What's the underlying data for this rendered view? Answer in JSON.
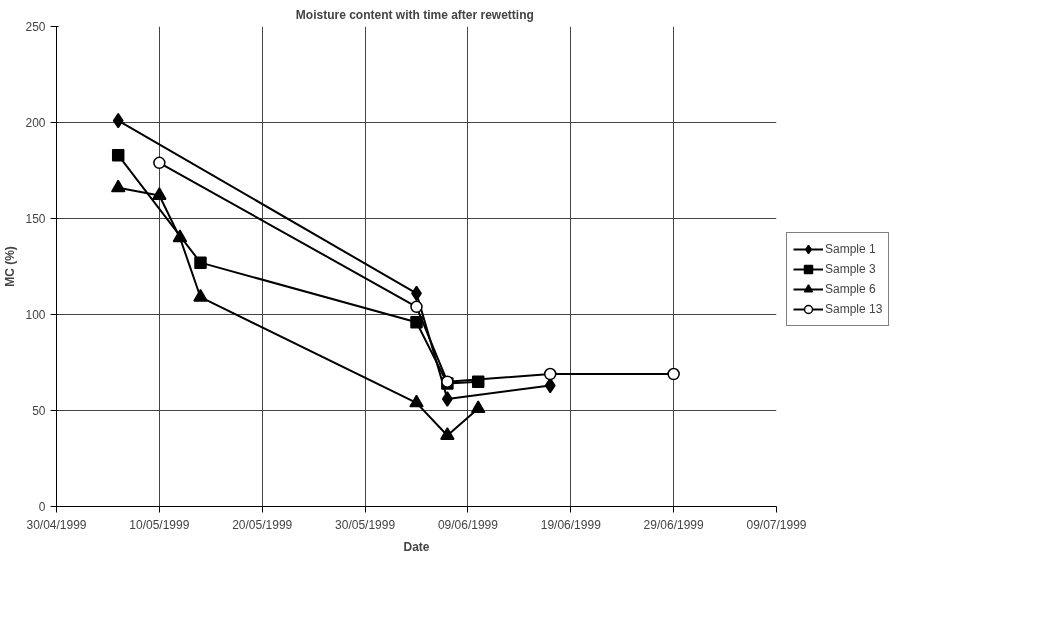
{
  "chart_data": {
    "type": "line",
    "title": "Moisture content  with time after rewetting",
    "xlabel": "Date",
    "ylabel": "MC (%)",
    "xlim": [
      "1999-04-30",
      "1999-07-09"
    ],
    "xticks": [
      {
        "value": "1999-04-30",
        "label": "30/04/1999"
      },
      {
        "value": "1999-05-10",
        "label": "10/05/1999"
      },
      {
        "value": "1999-05-20",
        "label": "20/05/1999"
      },
      {
        "value": "1999-05-30",
        "label": "30/05/1999"
      },
      {
        "value": "1999-06-09",
        "label": "09/06/1999"
      },
      {
        "value": "1999-06-19",
        "label": "19/06/1999"
      },
      {
        "value": "1999-06-29",
        "label": "29/06/1999"
      },
      {
        "value": "1999-07-09",
        "label": "09/07/1999"
      }
    ],
    "ylim": [
      0,
      250
    ],
    "yticks": [
      0,
      50,
      100,
      150,
      200,
      250
    ],
    "grid": true,
    "legend": "right",
    "line_style": "solid",
    "series": [
      {
        "name": "Sample 1",
        "color": "#000000",
        "marker": "diamond",
        "x": [
          "1999-05-06",
          "1999-06-04",
          "1999-06-07",
          "1999-06-17"
        ],
        "values": [
          201,
          111,
          56,
          63
        ]
      },
      {
        "name": "Sample 3",
        "color": "#000000",
        "marker": "square",
        "x": [
          "1999-05-06",
          "1999-05-14",
          "1999-06-04",
          "1999-06-07",
          "1999-06-10"
        ],
        "values": [
          183,
          127,
          96,
          64,
          65
        ]
      },
      {
        "name": "Sample 6",
        "color": "#000000",
        "marker": "triangle",
        "x": [
          "1999-05-06",
          "1999-05-10",
          "1999-05-12",
          "1999-05-14",
          "1999-06-04",
          "1999-06-07",
          "1999-06-10"
        ],
        "values": [
          166,
          162,
          140,
          109,
          54,
          37,
          51
        ]
      },
      {
        "name": "Sample 13",
        "color": "#000000",
        "marker": "circle",
        "x": [
          "1999-05-10",
          "1999-06-04",
          "1999-06-07",
          "1999-06-17",
          "1999-06-29"
        ],
        "values": [
          179,
          104,
          65,
          69,
          69
        ]
      }
    ]
  }
}
